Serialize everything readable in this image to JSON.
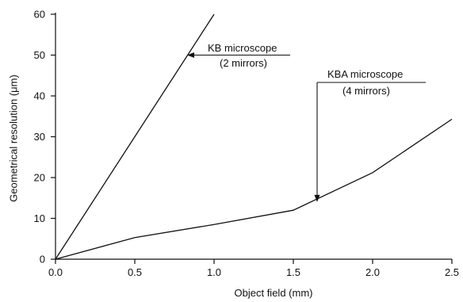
{
  "chart_data": {
    "type": "line",
    "xlabel": "Object field (mm)",
    "ylabel": "Geometrical resolution (μm)",
    "xlim": [
      0.0,
      2.5
    ],
    "ylim": [
      0,
      60
    ],
    "x_ticks": [
      {
        "value": 0.0,
        "label": "0.0"
      },
      {
        "value": 0.5,
        "label": "0.5"
      },
      {
        "value": 1.0,
        "label": "1.0"
      },
      {
        "value": 1.5,
        "label": "1.5"
      },
      {
        "value": 2.0,
        "label": "2.0"
      },
      {
        "value": 2.5,
        "label": "2.5"
      }
    ],
    "y_ticks": [
      {
        "value": 0,
        "label": "0"
      },
      {
        "value": 10,
        "label": "10"
      },
      {
        "value": 20,
        "label": "20"
      },
      {
        "value": 30,
        "label": "30"
      },
      {
        "value": 40,
        "label": "40"
      },
      {
        "value": 50,
        "label": "50"
      },
      {
        "value": 60,
        "label": "60"
      }
    ],
    "grid": false,
    "series": [
      {
        "key": "kb",
        "x": [
          0.0,
          1.0
        ],
        "y": [
          0,
          60
        ]
      },
      {
        "key": "kba",
        "x": [
          0.0,
          0.5,
          1.0,
          1.5,
          2.0,
          2.5
        ],
        "y": [
          0,
          5.3,
          8.5,
          12,
          21.2,
          34.3
        ]
      }
    ],
    "annotations": [
      {
        "key": "kb",
        "lines": [
          "KB microscope",
          "(2 mirrors)"
        ],
        "arrow_target": {
          "x": 0.83,
          "y": 50.0
        }
      },
      {
        "key": "kba",
        "lines": [
          "KBA microscope",
          "(4 mirrors)"
        ],
        "arrow_target": {
          "x": 1.65,
          "y": 14.0
        }
      }
    ]
  }
}
